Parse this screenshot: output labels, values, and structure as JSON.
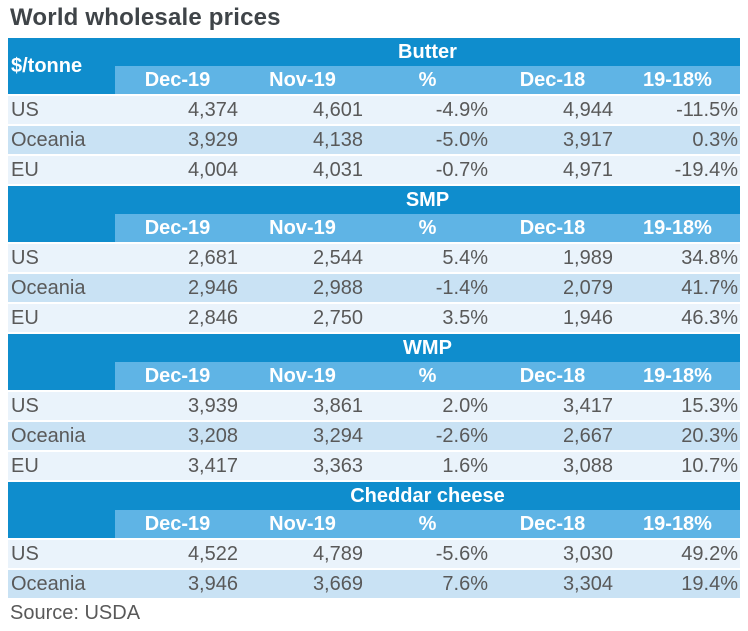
{
  "title": "World wholesale prices",
  "unit_label": "$/tonne",
  "source": "Source: USDA",
  "columns": [
    "Dec-19",
    "Nov-19",
    "%",
    "Dec-18",
    "19-18%"
  ],
  "colors": {
    "header_blue": "#0f8dcd",
    "subheader_blue": "#5fb4e5",
    "row_light": "#eaf3fb",
    "row_mid": "#c9e2f4",
    "text_gray": "#595959",
    "title_gray": "#3f4448"
  },
  "sections": [
    {
      "name": "Butter",
      "rows": [
        {
          "region": "US",
          "values": [
            "4,374",
            "4,601",
            "-4.9%",
            "4,944",
            "-11.5%"
          ]
        },
        {
          "region": "Oceania",
          "values": [
            "3,929",
            "4,138",
            "-5.0%",
            "3,917",
            "0.3%"
          ]
        },
        {
          "region": "EU",
          "values": [
            "4,004",
            "4,031",
            "-0.7%",
            "4,971",
            "-19.4%"
          ]
        }
      ]
    },
    {
      "name": "SMP",
      "rows": [
        {
          "region": "US",
          "values": [
            "2,681",
            "2,544",
            "5.4%",
            "1,989",
            "34.8%"
          ]
        },
        {
          "region": "Oceania",
          "values": [
            "2,946",
            "2,988",
            "-1.4%",
            "2,079",
            "41.7%"
          ]
        },
        {
          "region": "EU",
          "values": [
            "2,846",
            "2,750",
            "3.5%",
            "1,946",
            "46.3%"
          ]
        }
      ]
    },
    {
      "name": "WMP",
      "rows": [
        {
          "region": "US",
          "values": [
            "3,939",
            "3,861",
            "2.0%",
            "3,417",
            "15.3%"
          ]
        },
        {
          "region": "Oceania",
          "values": [
            "3,208",
            "3,294",
            "-2.6%",
            "2,667",
            "20.3%"
          ]
        },
        {
          "region": "EU",
          "values": [
            "3,417",
            "3,363",
            "1.6%",
            "3,088",
            "10.7%"
          ]
        }
      ]
    },
    {
      "name": "Cheddar cheese",
      "rows": [
        {
          "region": "US",
          "values": [
            "4,522",
            "4,789",
            "-5.6%",
            "3,030",
            "49.2%"
          ]
        },
        {
          "region": "Oceania",
          "values": [
            "3,946",
            "3,669",
            "7.6%",
            "3,304",
            "19.4%"
          ]
        }
      ]
    }
  ],
  "chart_data": {
    "type": "table",
    "title": "World wholesale prices",
    "unit": "$/tonne",
    "source": "Source: USDA",
    "columns": [
      "Dec-19",
      "Nov-19",
      "%",
      "Dec-18",
      "19-18%"
    ],
    "tables": [
      {
        "section": "Butter",
        "rows": [
          [
            "US",
            4374,
            4601,
            -4.9,
            4944,
            -11.5
          ],
          [
            "Oceania",
            3929,
            4138,
            -5.0,
            3917,
            0.3
          ],
          [
            "EU",
            4004,
            4031,
            -0.7,
            4971,
            -19.4
          ]
        ]
      },
      {
        "section": "SMP",
        "rows": [
          [
            "US",
            2681,
            2544,
            5.4,
            1989,
            34.8
          ],
          [
            "Oceania",
            2946,
            2988,
            -1.4,
            2079,
            41.7
          ],
          [
            "EU",
            2846,
            2750,
            3.5,
            1946,
            46.3
          ]
        ]
      },
      {
        "section": "WMP",
        "rows": [
          [
            "US",
            3939,
            3861,
            2.0,
            3417,
            15.3
          ],
          [
            "Oceania",
            3208,
            3294,
            -2.6,
            2667,
            20.3
          ],
          [
            "EU",
            3417,
            3363,
            1.6,
            3088,
            10.7
          ]
        ]
      },
      {
        "section": "Cheddar cheese",
        "rows": [
          [
            "US",
            4522,
            4789,
            -5.6,
            3030,
            49.2
          ],
          [
            "Oceania",
            3946,
            3669,
            7.6,
            3304,
            19.4
          ]
        ]
      }
    ]
  }
}
